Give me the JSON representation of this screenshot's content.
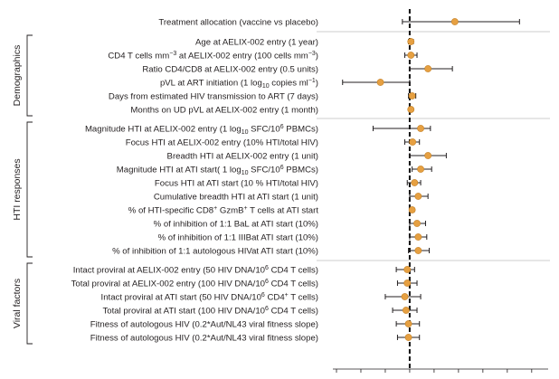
{
  "chart_data": {
    "type": "forest",
    "reference_value": 0,
    "xlim": [
      -3,
      5.6
    ],
    "x_ticks": [
      -3,
      -2,
      -1,
      0,
      1,
      2,
      3,
      4,
      5
    ],
    "x_tick_labels_visible": false,
    "point_color": "#e6a042",
    "rows": [
      {
        "group": null,
        "label": "Treatment allocation (vaccine vs placebo)",
        "estimate": 1.85,
        "lo": -0.3,
        "hi": 4.5
      },
      {
        "group": "Demographics",
        "label": "Age at AELIX-002 entry (1 year)",
        "estimate": 0.05,
        "lo": -0.05,
        "hi": 0.15
      },
      {
        "group": "Demographics",
        "label": "CD4 T cells mm<sup>−3</sup> at AELIX-002 entry (100 cells mm<sup>−3</sup>)",
        "estimate": 0.05,
        "lo": -0.2,
        "hi": 0.3
      },
      {
        "group": "Demographics",
        "label": "Ratio CD4/CD8 at AELIX-002 entry (0.5 units)",
        "estimate": 0.75,
        "lo": 0.0,
        "hi": 1.75
      },
      {
        "group": "Demographics",
        "label": "pVL at ART initiation (1 log<sub>10</sub> copies ml<sup>−1</sup>)",
        "estimate": -1.2,
        "lo": -2.75,
        "hi": 0.0
      },
      {
        "group": "Demographics",
        "label": "Days from estimated HIV transmission to ART (7 days)",
        "estimate": 0.1,
        "lo": -0.05,
        "hi": 0.25
      },
      {
        "group": "Demographics",
        "label": "Months on UD pVL at AELIX-002 entry (1 month)",
        "estimate": 0.05,
        "lo": -0.02,
        "hi": 0.12
      },
      {
        "group": "HTI responses",
        "label": "Magnitude HTI at AELIX-002 entry (1 log<sub>10</sub> SFC/10<sup>6</sup> PBMCs)",
        "estimate": 0.45,
        "lo": -1.5,
        "hi": 0.85
      },
      {
        "group": "HTI responses",
        "label": "Focus HTI at AELIX-002 entry (10% HTI/total HIV)",
        "estimate": 0.12,
        "lo": -0.2,
        "hi": 0.4
      },
      {
        "group": "HTI responses",
        "label": "Breadth HTI at AELIX-002 entry (1 unit)",
        "estimate": 0.75,
        "lo": 0.0,
        "hi": 1.5
      },
      {
        "group": "HTI responses",
        "label": "Magnitude HTI at ATI start( 1 log<sub>10</sub> SFC/10<sup>6</sup> PBMCs)",
        "estimate": 0.45,
        "lo": 0.1,
        "hi": 0.9
      },
      {
        "group": "HTI responses",
        "label": "Focus HTI at ATI start (10 % HTI/total HIV)",
        "estimate": 0.2,
        "lo": -0.1,
        "hi": 0.45
      },
      {
        "group": "HTI responses",
        "label": "Cumulative breadth HTI at ATI start (1 unit)",
        "estimate": 0.35,
        "lo": 0.0,
        "hi": 0.75
      },
      {
        "group": "HTI responses",
        "label": "% of HTI-specific CD8<sup>+</sup> GzmB<sup>+</sup> T cells at ATI start",
        "estimate": 0.1,
        "lo": 0.02,
        "hi": 0.18
      },
      {
        "group": "HTI responses",
        "label": "% of inhibition of 1:1 BaL at ATI start (10%)",
        "estimate": 0.3,
        "lo": 0.0,
        "hi": 0.65
      },
      {
        "group": "HTI responses",
        "label": "% of inhibition of 1:1 IIIBat ATI start (10%)",
        "estimate": 0.35,
        "lo": 0.0,
        "hi": 0.7
      },
      {
        "group": "HTI responses",
        "label": "% of inhibition of 1:1 autologous HIVat ATI start (10%)",
        "estimate": 0.35,
        "lo": -0.05,
        "hi": 0.8
      },
      {
        "group": "Viral factors",
        "label": "Intact proviral at AELIX-002 entry (50 HIV DNA/10<sup>6</sup> CD4 T cells)",
        "estimate": -0.1,
        "lo": -0.55,
        "hi": 0.2
      },
      {
        "group": "Viral factors",
        "label": "Total proviral at AELIX-002 entry (100 HIV DNA/10<sup>6</sup> CD4 T cells)",
        "estimate": -0.1,
        "lo": -0.5,
        "hi": 0.3
      },
      {
        "group": "Viral factors",
        "label": "Intact proviral at ATI start (50 HIV DNA/10<sup>6</sup> CD4<sup>+</sup> T cells)",
        "estimate": -0.2,
        "lo": -1.0,
        "hi": 0.45
      },
      {
        "group": "Viral factors",
        "label": "Total proviral at ATI start (100 HIV DNA/10<sup>6</sup> CD4 T cells)",
        "estimate": -0.15,
        "lo": -0.7,
        "hi": 0.3
      },
      {
        "group": "Viral factors",
        "label": "Fitness of autologous HIV (0.2*Aut/NL43 viral fitness slope)",
        "estimate": -0.05,
        "lo": -0.55,
        "hi": 0.4
      },
      {
        "group": "Viral factors",
        "label": "Fitness of autologous HIV (0.2*Aut/NL43 viral fitness slope)",
        "estimate": -0.05,
        "lo": -0.5,
        "hi": 0.4
      }
    ],
    "groups": [
      "Demographics",
      "HTI responses",
      "Viral factors"
    ]
  }
}
